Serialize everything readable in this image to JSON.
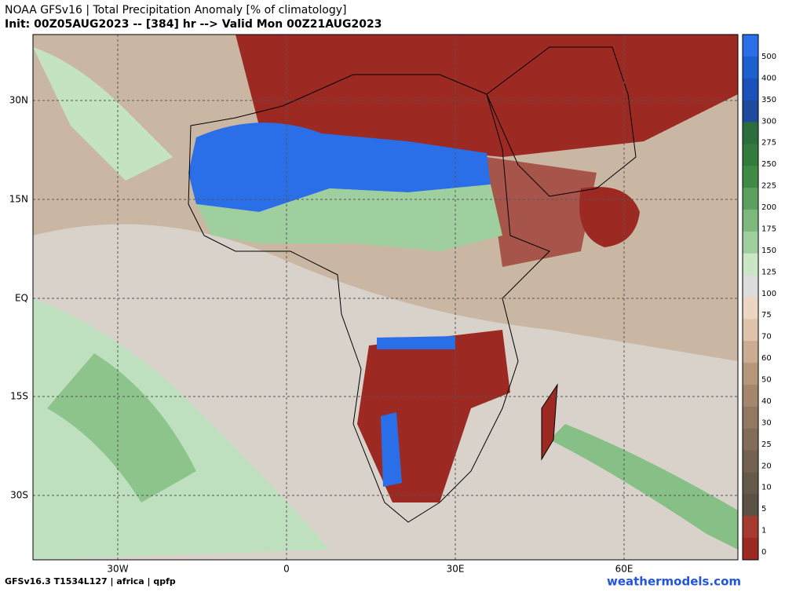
{
  "header": {
    "title": "NOAA GFSv16 |  Total Precipitation Anomaly [% of climatology]",
    "subtitle": "Init: 00Z05AUG2023 -- [384] hr --> Valid Mon 00Z21AUG2023"
  },
  "map": {
    "lat_labels": [
      "30N",
      "15N",
      "EQ",
      "15S",
      "30S"
    ],
    "lon_labels": [
      "30W",
      "0",
      "30E",
      "60E"
    ]
  },
  "colorbar": {
    "levels": [
      500,
      400,
      350,
      300,
      275,
      250,
      225,
      200,
      175,
      150,
      125,
      100,
      75,
      70,
      60,
      50,
      40,
      30,
      25,
      20,
      10,
      5,
      1,
      0
    ],
    "colors": [
      "#2a6fe8",
      "#1e5fd0",
      "#1a52bc",
      "#1d4a9c",
      "#2c6d3c",
      "#337b3c",
      "#3f8b46",
      "#5ca060",
      "#7db87e",
      "#a0cf9f",
      "#c9e6c5",
      "#dcdcdc",
      "#ecd6c2",
      "#dfc2aa",
      "#cbab92",
      "#b7977c",
      "#a4876c",
      "#937961",
      "#836c58",
      "#736250",
      "#655a4a",
      "#5a5144",
      "#a73a2f",
      "#9c2a22"
    ]
  },
  "footer": {
    "left": "GFSv16.3 T1534L127 | africa | qpfp",
    "right": "weathermodels.com"
  }
}
